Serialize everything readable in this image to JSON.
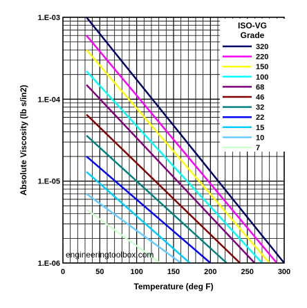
{
  "chart_data": {
    "type": "line",
    "xlabel": "Temperature (deg F)",
    "ylabel": "Absolute Viscosity (lb s/in2)",
    "x_scale": "linear",
    "y_scale": "log",
    "xlim": [
      0,
      300
    ],
    "ylim": [
      1e-06,
      0.001
    ],
    "x_ticks": [
      "0",
      "50",
      "100",
      "150",
      "200",
      "250",
      "300"
    ],
    "y_ticks": [
      "1.E-06",
      "1.E-05",
      "1.E-04",
      "1.E-03"
    ],
    "grid": true,
    "legend": {
      "title": "ISO-VG\nGrade",
      "placement": "top-right"
    },
    "watermark": "engineeringtoolbox.com",
    "series": [
      {
        "name": "320",
        "color": "#000066",
        "x": [
          32,
          300
        ],
        "y": [
          0.001,
          1e-06
        ]
      },
      {
        "name": "220",
        "color": "#ff00ff",
        "x": [
          32,
          290
        ],
        "y": [
          0.0006,
          1e-06
        ]
      },
      {
        "name": "150",
        "color": "#ffff00",
        "x": [
          32,
          280
        ],
        "y": [
          0.0004,
          1e-06
        ]
      },
      {
        "name": "100",
        "color": "#00ffff",
        "x": [
          32,
          270
        ],
        "y": [
          0.00022,
          1e-06
        ]
      },
      {
        "name": "68",
        "color": "#800080",
        "x": [
          32,
          260
        ],
        "y": [
          0.00015,
          1e-06
        ]
      },
      {
        "name": "46",
        "color": "#800000",
        "x": [
          32,
          240
        ],
        "y": [
          6.5e-05,
          1e-06
        ]
      },
      {
        "name": "32",
        "color": "#008080",
        "x": [
          32,
          222
        ],
        "y": [
          3.6e-05,
          1e-06
        ]
      },
      {
        "name": "22",
        "color": "#0000ff",
        "x": [
          32,
          200
        ],
        "y": [
          2e-05,
          1e-06
        ]
      },
      {
        "name": "15",
        "color": "#00ccff",
        "x": [
          32,
          172
        ],
        "y": [
          1.3e-05,
          1e-06
        ]
      },
      {
        "name": "10",
        "color": "#66ccff",
        "x": [
          32,
          160
        ],
        "y": [
          7e-06,
          1e-06
        ]
      },
      {
        "name": "7",
        "color": "#ccffcc",
        "x": [
          32,
          132
        ],
        "y": [
          4.5e-06,
          1e-06
        ]
      }
    ]
  }
}
